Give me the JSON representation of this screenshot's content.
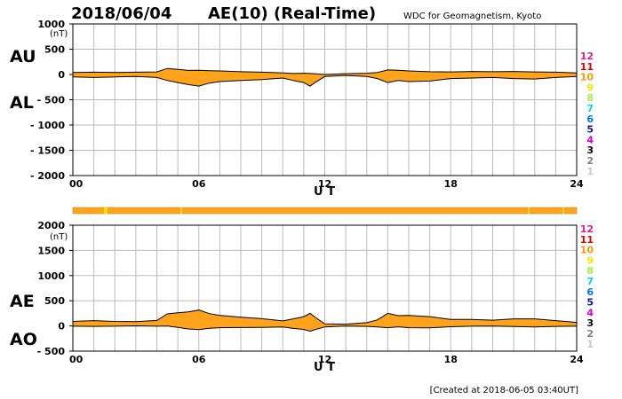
{
  "header": {
    "date": "2018/06/04",
    "title": "AE(10) (Real-Time)",
    "organization": "WDC for Geomagnetism, Kyoto"
  },
  "footer": {
    "created": "[Created at 2018-06-05 03:40UT]"
  },
  "legend": {
    "items": [
      {
        "label": "12",
        "color": "#e0208c"
      },
      {
        "label": "11",
        "color": "#e00000"
      },
      {
        "label": "10",
        "color": "#ff9900"
      },
      {
        "label": "9",
        "color": "#f2e600"
      },
      {
        "label": "8",
        "color": "#a8ee40"
      },
      {
        "label": "7",
        "color": "#00d8e8"
      },
      {
        "label": "6",
        "color": "#0070ff"
      },
      {
        "label": "5",
        "color": "#1a10a8"
      },
      {
        "label": "4",
        "color": "#d000d0"
      },
      {
        "label": "3",
        "color": "#000000"
      },
      {
        "label": "2",
        "color": "#808080"
      },
      {
        "label": "1",
        "color": "#c8c8c8"
      }
    ]
  },
  "colors": {
    "fill": "#ffa31a",
    "line": "#000000",
    "grid": "#bbbbbb",
    "coverage": "#ffa31a",
    "coverage_hi": "#f2e600"
  },
  "chart_data": [
    {
      "type": "area",
      "id": "au_al",
      "title": "AU / AL",
      "labels_top": "AU",
      "labels_bottom": "AL",
      "unit": "(nT)",
      "xlabel": "U T",
      "xlim": [
        0,
        24
      ],
      "ylim": [
        -2000,
        1000
      ],
      "yticks": [
        1000,
        500,
        0,
        -500,
        -1000,
        -1500,
        -2000
      ],
      "ytick_labels": [
        "1000",
        "500",
        "0",
        "- 500",
        "- 1000",
        "- 1500",
        "- 2000"
      ],
      "xtick_labels": [
        "00",
        "06",
        "12",
        "18",
        "24"
      ],
      "x": [
        0,
        1,
        2,
        3,
        4,
        4.5,
        5,
        5.5,
        6,
        6.5,
        7,
        8,
        9,
        10,
        10.5,
        11,
        11.3,
        11.5,
        12,
        13,
        14,
        14.5,
        15,
        15.5,
        16,
        17,
        18,
        19,
        20,
        21,
        22,
        23,
        24
      ],
      "series": [
        {
          "name": "AU",
          "values": [
            40,
            45,
            40,
            45,
            50,
            120,
            100,
            80,
            85,
            75,
            70,
            55,
            45,
            30,
            20,
            25,
            20,
            15,
            0,
            15,
            25,
            40,
            90,
            85,
            70,
            55,
            50,
            60,
            55,
            60,
            50,
            45,
            30
          ]
        },
        {
          "name": "AL",
          "values": [
            -50,
            -60,
            -50,
            -40,
            -60,
            -120,
            -160,
            -200,
            -230,
            -170,
            -140,
            -120,
            -100,
            -70,
            -120,
            -160,
            -230,
            -170,
            -40,
            -20,
            -40,
            -80,
            -160,
            -120,
            -140,
            -130,
            -80,
            -70,
            -60,
            -80,
            -90,
            -60,
            -40
          ]
        }
      ]
    },
    {
      "type": "area",
      "id": "ae_ao",
      "title": "AE / AO",
      "labels_top": "AE",
      "labels_bottom": "AO",
      "unit": "(nT)",
      "xlabel": "U T",
      "xlim": [
        0,
        24
      ],
      "ylim": [
        -500,
        2000
      ],
      "yticks": [
        2000,
        1500,
        1000,
        500,
        0,
        -500
      ],
      "ytick_labels": [
        "2000",
        "1500",
        "1000",
        "500",
        "0",
        "- 500"
      ],
      "xtick_labels": [
        "00",
        "06",
        "12",
        "18",
        "24"
      ],
      "x": [
        0,
        1,
        2,
        3,
        4,
        4.5,
        5,
        5.5,
        6,
        6.5,
        7,
        8,
        9,
        10,
        10.5,
        11,
        11.3,
        11.5,
        12,
        13,
        14,
        14.5,
        15,
        15.5,
        16,
        17,
        18,
        19,
        20,
        21,
        22,
        23,
        24
      ],
      "series": [
        {
          "name": "AE",
          "values": [
            90,
            105,
            90,
            85,
            110,
            240,
            260,
            280,
            315,
            245,
            210,
            175,
            145,
            100,
            140,
            185,
            250,
            185,
            40,
            35,
            65,
            120,
            250,
            205,
            210,
            185,
            130,
            130,
            115,
            140,
            140,
            105,
            70
          ]
        },
        {
          "name": "AO",
          "values": [
            -5,
            -8,
            -5,
            2,
            -5,
            0,
            -30,
            -60,
            -72,
            -48,
            -35,
            -32,
            -28,
            -20,
            -50,
            -68,
            -105,
            -78,
            -20,
            -2,
            -8,
            -20,
            -35,
            -18,
            -35,
            -38,
            -15,
            -5,
            -2,
            -10,
            -20,
            -8,
            -5
          ]
        }
      ]
    }
  ]
}
